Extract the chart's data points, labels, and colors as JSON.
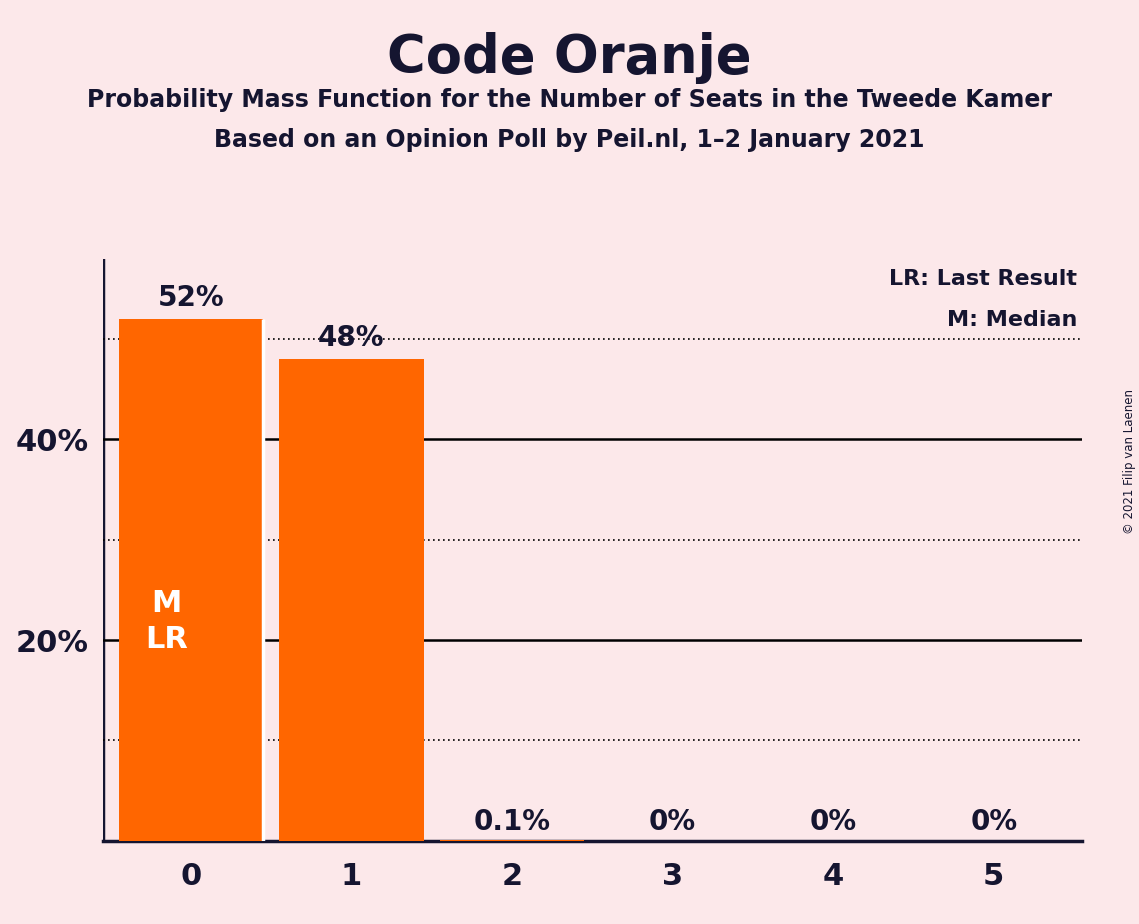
{
  "title": "Code Oranje",
  "subtitle1": "Probability Mass Function for the Number of Seats in the Tweede Kamer",
  "subtitle2": "Based on an Opinion Poll by Peil.nl, 1–2 January 2021",
  "copyright": "© 2021 Filip van Laenen",
  "categories": [
    0,
    1,
    2,
    3,
    4,
    5
  ],
  "values": [
    0.52,
    0.48,
    0.001,
    0.0,
    0.0,
    0.0
  ],
  "bar_labels": [
    "52%",
    "48%",
    "0.1%",
    "0%",
    "0%",
    "0%"
  ],
  "bar_color": "#FF6600",
  "background_color": "#fce8ea",
  "text_color": "#151530",
  "bar_inside_text": [
    "M",
    "LR"
  ],
  "bar_inside_color": "#ffffff",
  "legend_lr": "LR: Last Result",
  "legend_m": "M: Median",
  "solid_gridlines": [
    0.2,
    0.4
  ],
  "dotted_gridlines": [
    0.1,
    0.3,
    0.5
  ],
  "ylim_max": 0.58,
  "bar_width": 0.9,
  "figsize": [
    11.39,
    9.24
  ],
  "dpi": 100,
  "title_fontsize": 38,
  "subtitle_fontsize": 17,
  "tick_fontsize": 22,
  "label_fontsize": 20,
  "inside_fontsize": 22,
  "legend_fontsize": 16
}
